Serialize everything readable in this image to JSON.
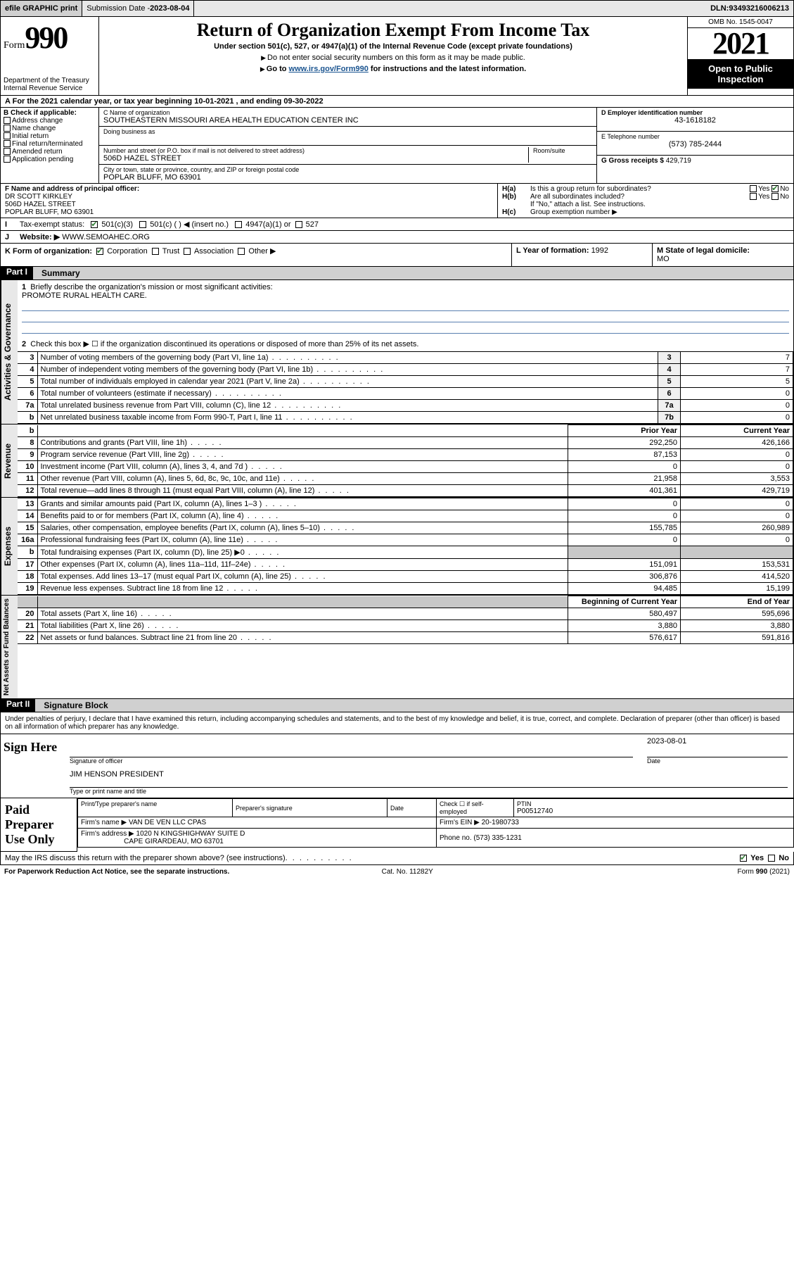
{
  "topbar": {
    "efile": "efile GRAPHIC print",
    "submission_label": "Submission Date - ",
    "submission_date": "2023-08-04",
    "dln_label": "DLN: ",
    "dln": "93493216006213"
  },
  "header": {
    "form_label": "Form",
    "form_no": "990",
    "dept": "Department of the Treasury\nInternal Revenue Service",
    "title": "Return of Organization Exempt From Income Tax",
    "sub": "Under section 501(c), 527, or 4947(a)(1) of the Internal Revenue Code (except private foundations)",
    "note1": "Do not enter social security numbers on this form as it may be made public.",
    "note2_a": "Go to ",
    "note2_link": "www.irs.gov/Form990",
    "note2_b": " for instructions and the latest information.",
    "omb": "OMB No. 1545-0047",
    "year": "2021",
    "inspect": "Open to Public Inspection"
  },
  "rowA": {
    "text_a": "For the 2021 calendar year, or tax year beginning ",
    "begin": "10-01-2021",
    "text_b": " , and ending ",
    "end": "09-30-2022"
  },
  "colB": {
    "hd": "B Check if applicable:",
    "items": [
      "Address change",
      "Name change",
      "Initial return",
      "Final return/terminated",
      "Amended return",
      "Application pending"
    ]
  },
  "boxC": {
    "name_lbl": "C Name of organization",
    "name": "SOUTHEASTERN MISSOURI AREA HEALTH EDUCATION CENTER INC",
    "dba_lbl": "Doing business as",
    "addr_lbl": "Number and street (or P.O. box if mail is not delivered to street address)",
    "room_lbl": "Room/suite",
    "addr": "506D HAZEL STREET",
    "city_lbl": "City or town, state or province, country, and ZIP or foreign postal code",
    "city": "POPLAR BLUFF, MO  63901"
  },
  "boxDE": {
    "d_lbl": "D Employer identification number",
    "d_val": "43-1618182",
    "e_lbl": "E Telephone number",
    "e_val": "(573) 785-2444",
    "g_lbl": "G Gross receipts $ ",
    "g_val": "429,719"
  },
  "rowF": {
    "f_lbl": "F Name and address of principal officer:",
    "f_name": "DR SCOTT KIRKLEY",
    "f_addr1": "506D HAZEL STREET",
    "f_addr2": "POPLAR BLUFF, MO  63901",
    "ha": "Is this a group return for subordinates?",
    "hb": "Are all subordinates included?",
    "hnote": "If \"No,\" attach a list. See instructions.",
    "hc": "Group exemption number ▶"
  },
  "rowI": {
    "lbl": "I",
    "text": "Tax-exempt status:",
    "opts": [
      "501(c)(3)",
      "501(c) (   ) ◀ (insert no.)",
      "4947(a)(1) or",
      "527"
    ]
  },
  "rowJ": {
    "lbl": "J",
    "text": "Website: ▶ ",
    "val": "WWW.SEMOAHEC.ORG"
  },
  "rowK": {
    "k": "K Form of organization:",
    "opts": [
      "Corporation",
      "Trust",
      "Association",
      "Other ▶"
    ],
    "l_lbl": "L Year of formation: ",
    "l_val": "1992",
    "m_lbl": "M State of legal domicile: ",
    "m_val": "MO"
  },
  "partI": {
    "label": "Part I",
    "title": "Summary"
  },
  "mission": {
    "q1": "Briefly describe the organization's mission or most significant activities:",
    "val": "PROMOTE RURAL HEALTH CARE.",
    "q2": "Check this box ▶ ☐  if the organization discontinued its operations or disposed of more than 25% of its net assets."
  },
  "gov": {
    "tab": "Activities & Governance",
    "rows": [
      {
        "n": "3",
        "d": "Number of voting members of the governing body (Part VI, line 1a)",
        "box": "3",
        "v": "7"
      },
      {
        "n": "4",
        "d": "Number of independent voting members of the governing body (Part VI, line 1b)",
        "box": "4",
        "v": "7"
      },
      {
        "n": "5",
        "d": "Total number of individuals employed in calendar year 2021 (Part V, line 2a)",
        "box": "5",
        "v": "5"
      },
      {
        "n": "6",
        "d": "Total number of volunteers (estimate if necessary)",
        "box": "6",
        "v": "0"
      },
      {
        "n": "7a",
        "d": "Total unrelated business revenue from Part VIII, column (C), line 12",
        "box": "7a",
        "v": "0"
      },
      {
        "n": "b",
        "d": "Net unrelated business taxable income from Form 990-T, Part I, line 11",
        "box": "7b",
        "v": "0"
      }
    ]
  },
  "rev": {
    "tab": "Revenue",
    "hdr_prior": "Prior Year",
    "hdr_curr": "Current Year",
    "rows": [
      {
        "n": "8",
        "d": "Contributions and grants (Part VIII, line 1h)",
        "p": "292,250",
        "c": "426,166"
      },
      {
        "n": "9",
        "d": "Program service revenue (Part VIII, line 2g)",
        "p": "87,153",
        "c": "0"
      },
      {
        "n": "10",
        "d": "Investment income (Part VIII, column (A), lines 3, 4, and 7d )",
        "p": "0",
        "c": "0"
      },
      {
        "n": "11",
        "d": "Other revenue (Part VIII, column (A), lines 5, 6d, 8c, 9c, 10c, and 11e)",
        "p": "21,958",
        "c": "3,553"
      },
      {
        "n": "12",
        "d": "Total revenue—add lines 8 through 11 (must equal Part VIII, column (A), line 12)",
        "p": "401,361",
        "c": "429,719"
      }
    ]
  },
  "exp": {
    "tab": "Expenses",
    "rows": [
      {
        "n": "13",
        "d": "Grants and similar amounts paid (Part IX, column (A), lines 1–3 )",
        "p": "0",
        "c": "0"
      },
      {
        "n": "14",
        "d": "Benefits paid to or for members (Part IX, column (A), line 4)",
        "p": "0",
        "c": "0"
      },
      {
        "n": "15",
        "d": "Salaries, other compensation, employee benefits (Part IX, column (A), lines 5–10)",
        "p": "155,785",
        "c": "260,989"
      },
      {
        "n": "16a",
        "d": "Professional fundraising fees (Part IX, column (A), line 11e)",
        "p": "0",
        "c": "0"
      },
      {
        "n": "b",
        "d": "Total fundraising expenses (Part IX, column (D), line 25) ▶0",
        "p": "",
        "c": "",
        "shade": true
      },
      {
        "n": "17",
        "d": "Other expenses (Part IX, column (A), lines 11a–11d, 11f–24e)",
        "p": "151,091",
        "c": "153,531"
      },
      {
        "n": "18",
        "d": "Total expenses. Add lines 13–17 (must equal Part IX, column (A), line 25)",
        "p": "306,876",
        "c": "414,520"
      },
      {
        "n": "19",
        "d": "Revenue less expenses. Subtract line 18 from line 12",
        "p": "94,485",
        "c": "15,199"
      }
    ]
  },
  "net": {
    "tab": "Net Assets or Fund Balances",
    "hdr_begin": "Beginning of Current Year",
    "hdr_end": "End of Year",
    "rows": [
      {
        "n": "20",
        "d": "Total assets (Part X, line 16)",
        "p": "580,497",
        "c": "595,696"
      },
      {
        "n": "21",
        "d": "Total liabilities (Part X, line 26)",
        "p": "3,880",
        "c": "3,880"
      },
      {
        "n": "22",
        "d": "Net assets or fund balances. Subtract line 21 from line 20",
        "p": "576,617",
        "c": "591,816"
      }
    ]
  },
  "partII": {
    "label": "Part II",
    "title": "Signature Block"
  },
  "perjury": "Under penalties of perjury, I declare that I have examined this return, including accompanying schedules and statements, and to the best of my knowledge and belief, it is true, correct, and complete. Declaration of preparer (other than officer) is based on all information of which preparer has any knowledge.",
  "sign": {
    "left": "Sign Here",
    "sig_lbl": "Signature of officer",
    "date_lbl": "Date",
    "date": "2023-08-01",
    "name": "JIM HENSON PRESIDENT",
    "name_lbl": "Type or print name and title"
  },
  "prep": {
    "left": "Paid Preparer Use Only",
    "h1": "Print/Type preparer's name",
    "h2": "Preparer's signature",
    "h3": "Date",
    "h4a": "Check ☐ if self-employed",
    "h4b": "PTIN",
    "ptin": "P00512740",
    "firm_lbl": "Firm's name   ▶ ",
    "firm": "VAN DE VEN LLC CPAS",
    "ein_lbl": "Firm's EIN ▶ ",
    "ein": "20-1980733",
    "addr_lbl": "Firm's address ▶ ",
    "addr1": "1020 N KINGSHIGHWAY SUITE D",
    "addr2": "CAPE GIRARDEAU, MO  63701",
    "phone_lbl": "Phone no. ",
    "phone": "(573) 335-1231"
  },
  "discuss": {
    "q": "May the IRS discuss this return with the preparer shown above? (see instructions)",
    "yes": "Yes",
    "no": "No"
  },
  "footer": {
    "left": "For Paperwork Reduction Act Notice, see the separate instructions.",
    "mid": "Cat. No. 11282Y",
    "right": "Form 990 (2021)"
  },
  "colors": {
    "link": "#1a5490",
    "check": "#2e7d32",
    "rule": "#5a7fb0"
  }
}
